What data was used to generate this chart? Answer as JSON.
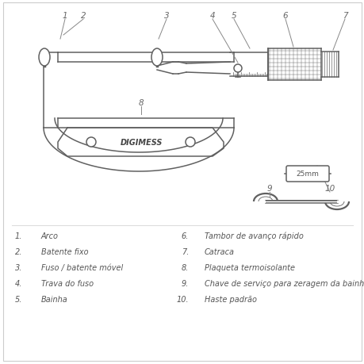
{
  "background_color": "#ffffff",
  "border_color": "#cccccc",
  "line_color": "#606060",
  "text_color": "#555555",
  "num_color": "#777777",
  "digimess_color": "#444444",
  "title_items_left": [
    [
      "1.",
      "Arco"
    ],
    [
      "2.",
      "Batente fixo"
    ],
    [
      "3.",
      "Fuso / batente móvel"
    ],
    [
      "4.",
      "Trava do fuso"
    ],
    [
      "5.",
      "Bainha"
    ]
  ],
  "title_items_right": [
    [
      "6.",
      "Tambor de avanço rápido"
    ],
    [
      "7.",
      "Catraca"
    ],
    [
      "8.",
      "Plaqueta termoisolante"
    ],
    [
      "9.",
      "Chave de serviço para zeragem da bainha"
    ],
    [
      "10.",
      "Haste padrão"
    ]
  ]
}
